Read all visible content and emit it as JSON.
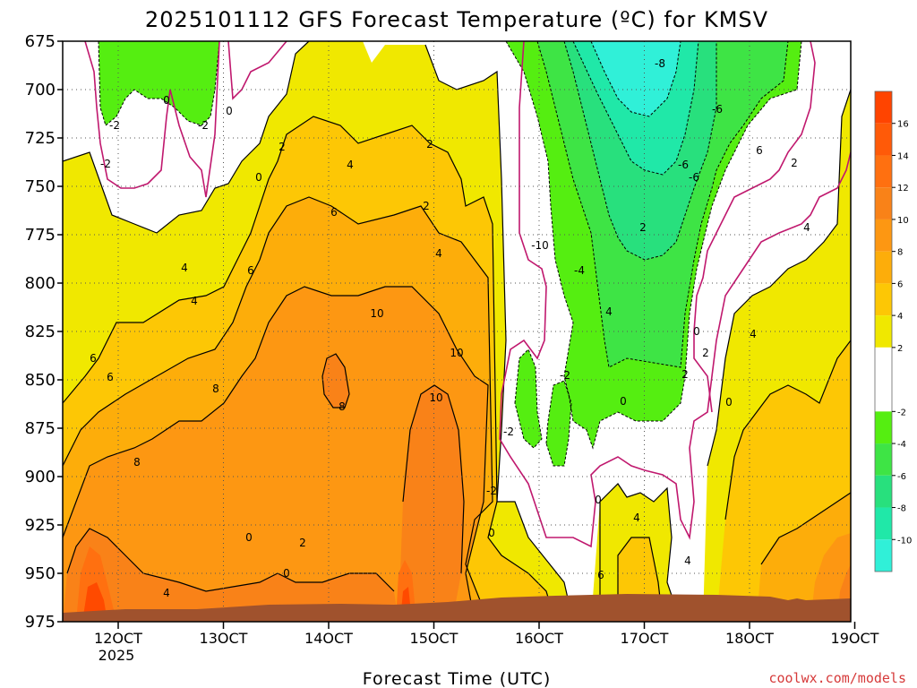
{
  "chart_data": {
    "type": "heatmap",
    "title": "2025101112 GFS Forecast Temperature (ºC) for KMSV",
    "xlabel": "Forecast Time (UTC)",
    "ylabel": "",
    "x_ticks": [
      "12OCT",
      "13OCT",
      "14OCT",
      "15OCT",
      "16OCT",
      "17OCT",
      "18OCT",
      "19OCT"
    ],
    "x_year_label": "2025",
    "y_ticks": [
      675,
      700,
      725,
      750,
      775,
      800,
      825,
      850,
      875,
      900,
      925,
      950,
      975
    ],
    "ylim": [
      975,
      675
    ],
    "colorbar": {
      "ticks": [
        16,
        14,
        12,
        10,
        8,
        6,
        4,
        2,
        -2,
        -4,
        -6,
        -8,
        -10
      ],
      "bins": [
        {
          "range": [
            16,
            18
          ],
          "color": "#ff4400"
        },
        {
          "range": [
            14,
            16
          ],
          "color": "#ff5a08"
        },
        {
          "range": [
            12,
            14
          ],
          "color": "#ff7010"
        },
        {
          "range": [
            10,
            12
          ],
          "color": "#f98218"
        },
        {
          "range": [
            8,
            10
          ],
          "color": "#fd9712"
        },
        {
          "range": [
            6,
            8
          ],
          "color": "#fdad0a"
        },
        {
          "range": [
            4,
            6
          ],
          "color": "#fdc705"
        },
        {
          "range": [
            2,
            4
          ],
          "color": "#f0e800"
        },
        {
          "range": [
            -2,
            2
          ],
          "color": "#ffffff"
        },
        {
          "range": [
            -4,
            -2
          ],
          "color": "#55ee11"
        },
        {
          "range": [
            -6,
            -4
          ],
          "color": "#3ee445"
        },
        {
          "range": [
            -8,
            -6
          ],
          "color": "#28e07d"
        },
        {
          "range": [
            -10,
            -8
          ],
          "color": "#20e8a8"
        },
        {
          "range": [
            -12,
            -10
          ],
          "color": "#30f0d8"
        }
      ]
    },
    "freezing_line_color": "#c0186e",
    "terrain_color": "#a0522d",
    "grid": true,
    "contour_labels": [
      "-2",
      "0",
      "-2",
      "0",
      "-2",
      "0",
      "2",
      "4",
      "2",
      "2",
      "4",
      "4",
      "6",
      "6",
      "6",
      "6",
      "8",
      "4",
      "8",
      "10",
      "10",
      "8",
      "10",
      "0",
      "2",
      "4",
      "0",
      "-2",
      "-2",
      "0",
      "-10",
      "-4",
      "-2",
      "0",
      "-8",
      "-6",
      "-6",
      "-6",
      "2",
      "4",
      "0",
      "0",
      "2",
      "2",
      "4",
      "6",
      "4",
      "6",
      "2",
      "4",
      "4",
      "0"
    ]
  },
  "credit": "coolwx.com/models"
}
